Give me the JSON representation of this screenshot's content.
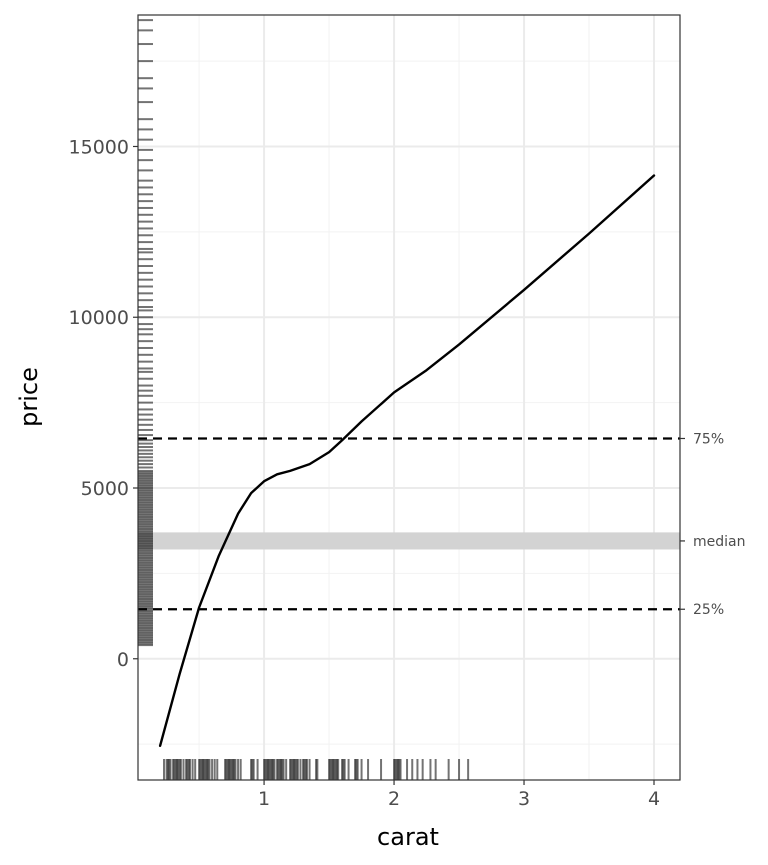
{
  "chart_data": {
    "type": "line",
    "title": "",
    "xlabel": "carat",
    "ylabel": "price",
    "xlim": [
      0.03,
      4.2
    ],
    "ylim": [
      -3550,
      18850
    ],
    "x_ticks": [
      {
        "value": 1,
        "label": "1"
      },
      {
        "value": 2,
        "label": "2"
      },
      {
        "value": 3,
        "label": "3"
      },
      {
        "value": 4,
        "label": "4"
      }
    ],
    "y_ticks": [
      {
        "value": 0,
        "label": "0"
      },
      {
        "value": 5000,
        "label": "5000"
      },
      {
        "value": 10000,
        "label": "10000"
      },
      {
        "value": 15000,
        "label": "15000"
      }
    ],
    "grid": true,
    "legend": "none",
    "series": [
      {
        "x": [
          0.2,
          0.35,
          0.5,
          0.65,
          0.8,
          0.9,
          1.0,
          1.1,
          1.2,
          1.35,
          1.5,
          1.6,
          1.75,
          2.0,
          2.25,
          2.5,
          3.0,
          3.5,
          4.0
        ],
        "y": [
          -2550,
          -450,
          1500,
          3000,
          4250,
          4850,
          5200,
          5400,
          5500,
          5700,
          6050,
          6400,
          6950,
          7800,
          8450,
          9200,
          10800,
          12450,
          14150
        ],
        "color": "#000000"
      }
    ],
    "reference_lines": [
      {
        "label": "75%",
        "y": 6450,
        "style": "dashed",
        "color": "#000000"
      },
      {
        "label": "25%",
        "y": 1450,
        "style": "dashed",
        "color": "#000000"
      }
    ],
    "reference_band": {
      "label": "median",
      "y_min": 3200,
      "y_max": 3700,
      "y_label": 3450,
      "color": "#d3d3d3"
    },
    "rug_x": [
      0.23,
      0.25,
      0.26,
      0.27,
      0.28,
      0.3,
      0.31,
      0.32,
      0.33,
      0.34,
      0.35,
      0.36,
      0.38,
      0.4,
      0.41,
      0.42,
      0.43,
      0.45,
      0.47,
      0.5,
      0.51,
      0.52,
      0.53,
      0.54,
      0.55,
      0.56,
      0.57,
      0.58,
      0.6,
      0.62,
      0.64,
      0.7,
      0.71,
      0.72,
      0.73,
      0.74,
      0.75,
      0.76,
      0.77,
      0.78,
      0.8,
      0.82,
      0.9,
      0.91,
      0.92,
      0.95,
      1.0,
      1.01,
      1.02,
      1.03,
      1.04,
      1.05,
      1.06,
      1.07,
      1.08,
      1.1,
      1.11,
      1.12,
      1.13,
      1.14,
      1.15,
      1.17,
      1.2,
      1.21,
      1.22,
      1.23,
      1.24,
      1.25,
      1.26,
      1.28,
      1.3,
      1.31,
      1.32,
      1.33,
      1.35,
      1.4,
      1.41,
      1.5,
      1.51,
      1.52,
      1.53,
      1.54,
      1.55,
      1.56,
      1.57,
      1.6,
      1.61,
      1.62,
      1.65,
      1.7,
      1.71,
      1.72,
      1.75,
      1.8,
      1.9,
      2.0,
      2.01,
      2.02,
      2.03,
      2.04,
      2.05,
      2.1,
      2.14,
      2.18,
      2.22,
      2.28,
      2.32,
      2.42,
      2.5,
      2.57
    ],
    "rug_y": [
      400,
      450,
      500,
      550,
      600,
      650,
      700,
      750,
      800,
      850,
      900,
      950,
      1000,
      1050,
      1100,
      1150,
      1200,
      1250,
      1300,
      1350,
      1400,
      1450,
      1500,
      1550,
      1600,
      1650,
      1700,
      1750,
      1800,
      1850,
      1900,
      1950,
      2000,
      2050,
      2100,
      2150,
      2200,
      2250,
      2300,
      2350,
      2400,
      2450,
      2500,
      2550,
      2600,
      2650,
      2700,
      2750,
      2800,
      2850,
      2900,
      2950,
      3000,
      3050,
      3100,
      3150,
      3200,
      3250,
      3300,
      3350,
      3400,
      3450,
      3500,
      3550,
      3600,
      3650,
      3700,
      3750,
      3800,
      3850,
      3900,
      3950,
      4000,
      4050,
      4100,
      4150,
      4200,
      4250,
      4300,
      4350,
      4400,
      4450,
      4500,
      4550,
      4600,
      4650,
      4700,
      4750,
      4800,
      4850,
      4900,
      4950,
      5000,
      5050,
      5100,
      5150,
      5200,
      5250,
      5300,
      5350,
      5400,
      5450,
      5500,
      5600,
      5700,
      5800,
      5900,
      6000,
      6100,
      6200,
      6300,
      6400,
      6550,
      6700,
      6850,
      7000,
      7150,
      7300,
      7500,
      7700,
      7850,
      8000,
      8200,
      8400,
      8500,
      8700,
      8900,
      9100,
      9300,
      9500,
      9650,
      9800,
      10000,
      10200,
      10300,
      10500,
      10700,
      10900,
      11100,
      11300,
      11500,
      11700,
      11900,
      12000,
      12200,
      12400,
      12600,
      12800,
      13000,
      13200,
      13400,
      13600,
      13800,
      14000,
      14300,
      14600,
      14900,
      15200,
      15500,
      15800,
      16300,
      16700,
      17000,
      17500,
      18000,
      18400,
      18700
    ]
  }
}
